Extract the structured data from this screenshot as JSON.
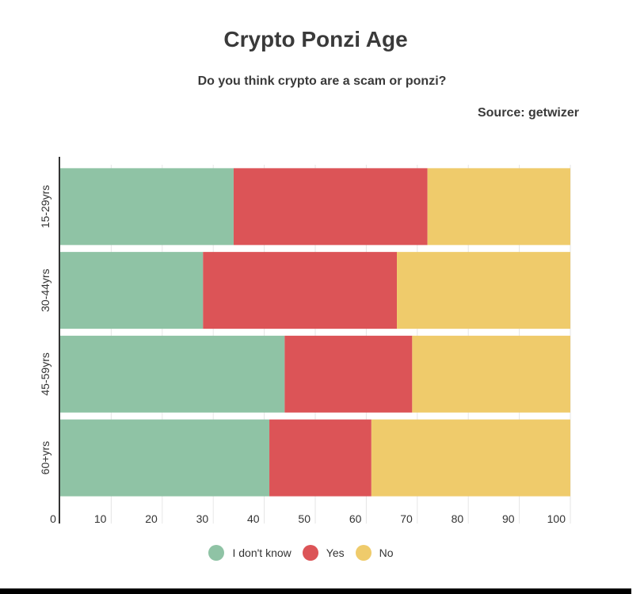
{
  "title": "Crypto Ponzi Age",
  "subtitle": "Do you think crypto are a scam or ponzi?",
  "source": "Source: getwizer",
  "colors": {
    "dont_know": "#8fc3a5",
    "yes": "#dc5457",
    "no": "#efcb6b",
    "grid": "#e6e6e6",
    "axis": "#333333"
  },
  "chart_data": {
    "type": "bar",
    "orientation": "horizontal",
    "stacked": true,
    "categories": [
      "15-29yrs",
      "30-44yrs",
      "45-59yrs",
      "60+yrs"
    ],
    "series": [
      {
        "name": "I don't know",
        "color": "#8fc3a5",
        "values": [
          34,
          28,
          44,
          41
        ]
      },
      {
        "name": "Yes",
        "color": "#dc5457",
        "values": [
          38,
          38,
          25,
          20
        ]
      },
      {
        "name": "No",
        "color": "#efcb6b",
        "values": [
          28,
          34,
          31,
          39
        ]
      }
    ],
    "xlim": [
      0,
      100
    ],
    "xticks": [
      0,
      10,
      20,
      30,
      40,
      50,
      60,
      70,
      80,
      90,
      100
    ],
    "grid": true,
    "legend_position": "bottom"
  }
}
